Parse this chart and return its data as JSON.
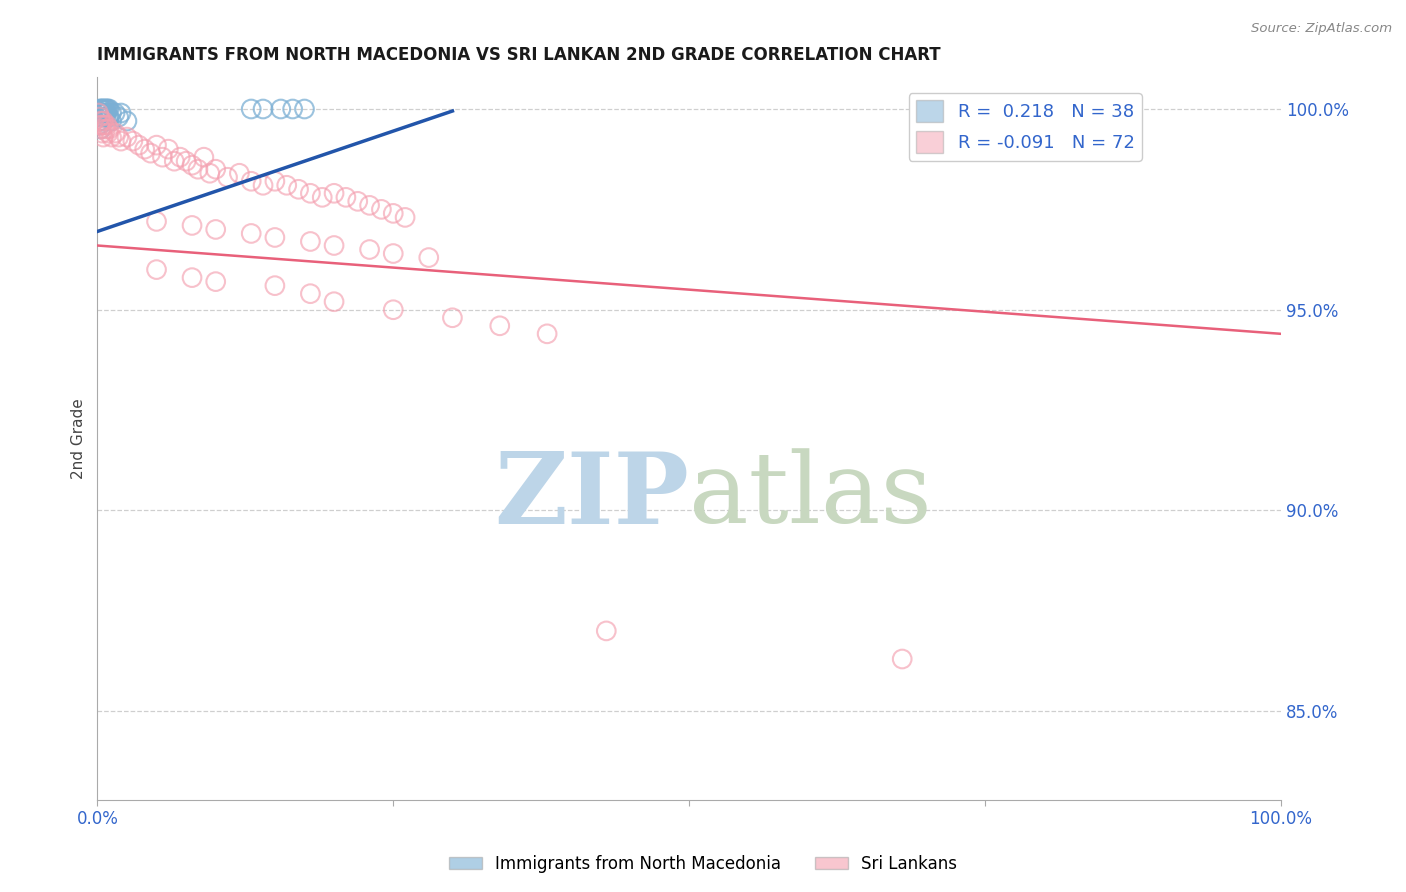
{
  "title": "IMMIGRANTS FROM NORTH MACEDONIA VS SRI LANKAN 2ND GRADE CORRELATION CHART",
  "source": "Source: ZipAtlas.com",
  "ylabel": "2nd Grade",
  "right_yticks": [
    "100.0%",
    "95.0%",
    "90.0%",
    "85.0%"
  ],
  "right_ytick_vals": [
    1.0,
    0.95,
    0.9,
    0.85
  ],
  "blue_R": 0.218,
  "blue_N": 38,
  "pink_R": -0.091,
  "pink_N": 72,
  "blue_color": "#7BAFD4",
  "pink_color": "#F4A0B0",
  "blue_line_color": "#2255AA",
  "pink_line_color": "#E8607A",
  "watermark_zip": "ZIP",
  "watermark_atlas": "atlas",
  "watermark_color_zip": "#BDD5E8",
  "watermark_color_atlas": "#C8D8C0",
  "background_color": "#FFFFFF",
  "grid_color": "#BBBBBB",
  "blue_scatter_x": [
    0.001,
    0.002,
    0.002,
    0.002,
    0.003,
    0.003,
    0.003,
    0.003,
    0.004,
    0.004,
    0.004,
    0.005,
    0.005,
    0.005,
    0.006,
    0.006,
    0.007,
    0.007,
    0.008,
    0.008,
    0.009,
    0.009,
    0.01,
    0.01,
    0.012,
    0.012,
    0.015,
    0.018,
    0.02,
    0.025,
    0.001,
    0.002,
    0.003,
    0.13,
    0.14,
    0.155,
    0.165,
    0.175
  ],
  "blue_scatter_y": [
    0.999,
    1.0,
    0.998,
    0.997,
    1.0,
    0.999,
    0.998,
    0.997,
    1.0,
    0.999,
    0.998,
    1.0,
    0.999,
    0.997,
    1.0,
    0.999,
    1.0,
    0.998,
    1.0,
    0.999,
    1.0,
    0.998,
    1.0,
    0.998,
    0.999,
    0.997,
    0.999,
    0.998,
    0.999,
    0.997,
    0.996,
    0.996,
    0.995,
    1.0,
    1.0,
    1.0,
    1.0,
    1.0
  ],
  "pink_scatter_x": [
    0.001,
    0.002,
    0.002,
    0.003,
    0.003,
    0.004,
    0.004,
    0.005,
    0.005,
    0.006,
    0.007,
    0.008,
    0.009,
    0.01,
    0.012,
    0.015,
    0.018,
    0.02,
    0.025,
    0.03,
    0.035,
    0.04,
    0.045,
    0.05,
    0.055,
    0.06,
    0.065,
    0.07,
    0.075,
    0.08,
    0.085,
    0.09,
    0.095,
    0.1,
    0.11,
    0.12,
    0.13,
    0.14,
    0.15,
    0.16,
    0.17,
    0.18,
    0.19,
    0.2,
    0.21,
    0.22,
    0.23,
    0.24,
    0.25,
    0.26,
    0.05,
    0.08,
    0.1,
    0.13,
    0.15,
    0.18,
    0.2,
    0.23,
    0.25,
    0.28,
    0.05,
    0.08,
    0.1,
    0.15,
    0.18,
    0.2,
    0.25,
    0.3,
    0.34,
    0.38,
    0.43,
    0.68
  ],
  "pink_scatter_y": [
    0.999,
    0.998,
    0.996,
    0.997,
    0.995,
    0.996,
    0.994,
    0.997,
    0.993,
    0.996,
    0.995,
    0.996,
    0.994,
    0.995,
    0.993,
    0.994,
    0.993,
    0.992,
    0.993,
    0.992,
    0.991,
    0.99,
    0.989,
    0.991,
    0.988,
    0.99,
    0.987,
    0.988,
    0.987,
    0.986,
    0.985,
    0.988,
    0.984,
    0.985,
    0.983,
    0.984,
    0.982,
    0.981,
    0.982,
    0.981,
    0.98,
    0.979,
    0.978,
    0.979,
    0.978,
    0.977,
    0.976,
    0.975,
    0.974,
    0.973,
    0.972,
    0.971,
    0.97,
    0.969,
    0.968,
    0.967,
    0.966,
    0.965,
    0.964,
    0.963,
    0.96,
    0.958,
    0.957,
    0.956,
    0.954,
    0.952,
    0.95,
    0.948,
    0.946,
    0.944,
    0.87,
    0.863
  ],
  "xlim": [
    0.0,
    1.0
  ],
  "ylim": [
    0.828,
    1.008
  ],
  "blue_line_x": [
    0.0,
    0.3
  ],
  "blue_line_y_start": 0.9695,
  "blue_line_y_end": 0.9995,
  "pink_line_x": [
    0.0,
    1.0
  ],
  "pink_line_y_start": 0.966,
  "pink_line_y_end": 0.944
}
